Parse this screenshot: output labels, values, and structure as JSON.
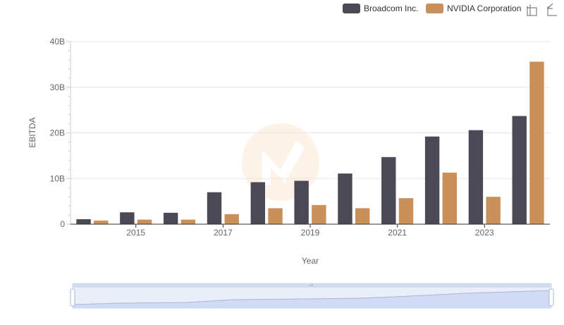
{
  "chart_data": {
    "type": "bar",
    "title": "",
    "xlabel": "Year",
    "ylabel": "EBITDA",
    "categories": [
      "2014",
      "2015",
      "2016",
      "2017",
      "2018",
      "2019",
      "2020",
      "2021",
      "2022",
      "2023",
      "2024"
    ],
    "x_tick_labels": [
      "2015",
      "2017",
      "2019",
      "2021",
      "2023"
    ],
    "y_tick_labels": [
      "0",
      "10B",
      "20B",
      "30B",
      "40B"
    ],
    "ylim": [
      0,
      40
    ],
    "y_unit": "B",
    "grid": true,
    "legend_position": "top-right",
    "series": [
      {
        "name": "Broadcom Inc.",
        "color": "#4a4955",
        "values": [
          1.1,
          2.6,
          2.5,
          7.0,
          9.2,
          9.5,
          11.1,
          14.7,
          19.2,
          20.6,
          23.7
        ]
      },
      {
        "name": "NVIDIA Corporation",
        "color": "#c9905a",
        "values": [
          0.8,
          1.0,
          1.0,
          2.2,
          3.5,
          4.2,
          3.5,
          5.7,
          11.3,
          6.0,
          35.6
        ]
      }
    ]
  },
  "toolbar": {
    "icons": [
      "zoom-icon",
      "reset-zoom-icon"
    ]
  },
  "data_zoom": {
    "start": 0,
    "end": 100
  }
}
